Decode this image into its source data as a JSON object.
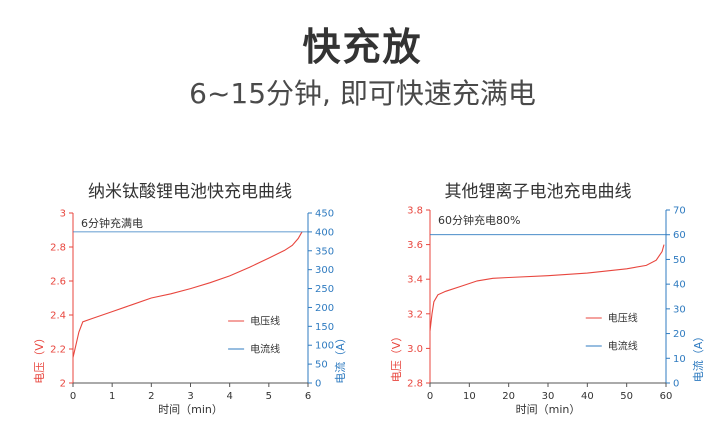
{
  "header": {
    "title": "快充放",
    "subtitle": "6~15分钟, 即可快速充满电"
  },
  "colors": {
    "voltage": "#e8463e",
    "current": "#2f7bc0",
    "text": "#333333"
  },
  "chart_data": [
    {
      "type": "line",
      "title": "纳米钛酸锂电池快充电曲线",
      "annotation": "6分钟充满电",
      "xlabel": "时间（min）",
      "ylabel": "电压（V）",
      "y2label": "电流（A）",
      "xlim": [
        0,
        6
      ],
      "ylim": [
        2,
        3
      ],
      "y2lim": [
        0,
        450
      ],
      "x_ticks": [
        "0",
        "1",
        "2",
        "3",
        "4",
        "5",
        "6"
      ],
      "y_ticks": [
        "2",
        "2.2",
        "2.4",
        "2.6",
        "2.8",
        "3"
      ],
      "y2_ticks": [
        "0",
        "50",
        "100",
        "150",
        "200",
        "250",
        "300",
        "350",
        "400",
        "450"
      ],
      "legend": [
        "电压线",
        "电流线"
      ],
      "series": [
        {
          "name": "电压线",
          "axis": "left",
          "x": [
            0.0,
            0.05,
            0.15,
            0.25,
            0.5,
            1.0,
            1.5,
            2.0,
            2.5,
            3.0,
            3.5,
            4.0,
            4.5,
            5.0,
            5.4,
            5.6,
            5.75,
            5.85
          ],
          "y": [
            2.15,
            2.2,
            2.3,
            2.36,
            2.38,
            2.42,
            2.46,
            2.5,
            2.525,
            2.555,
            2.59,
            2.63,
            2.68,
            2.735,
            2.78,
            2.81,
            2.85,
            2.89
          ]
        },
        {
          "name": "电流线",
          "axis": "right",
          "x": [
            0,
            6
          ],
          "y": [
            400,
            400
          ]
        }
      ]
    },
    {
      "type": "line",
      "title": "其他锂离子电池充电曲线",
      "annotation": "60分钟充电80%",
      "xlabel": "时间（min）",
      "ylabel": "电压（V）",
      "y2label": "电流（A）",
      "xlim": [
        0,
        60
      ],
      "ylim": [
        2.8,
        3.8
      ],
      "y2lim": [
        0,
        70
      ],
      "x_ticks": [
        "0",
        "10",
        "20",
        "30",
        "40",
        "50",
        "60"
      ],
      "y_ticks": [
        "2.8",
        "3.0",
        "3.2",
        "3.4",
        "3.6",
        "3.8"
      ],
      "y2_ticks": [
        "0",
        "10",
        "20",
        "30",
        "40",
        "50",
        "60",
        "70"
      ],
      "legend": [
        "电压线",
        "电流线"
      ],
      "series": [
        {
          "name": "电压线",
          "axis": "left",
          "x": [
            0.0,
            0.5,
            1.0,
            2.0,
            4.0,
            8.0,
            12.0,
            16.0,
            20.0,
            30.0,
            40.0,
            50.0,
            55.0,
            57.5,
            59.0,
            59.5
          ],
          "y": [
            3.1,
            3.2,
            3.27,
            3.31,
            3.33,
            3.36,
            3.39,
            3.405,
            3.41,
            3.42,
            3.435,
            3.46,
            3.48,
            3.51,
            3.56,
            3.6
          ]
        },
        {
          "name": "电流线",
          "axis": "right",
          "x": [
            0,
            60
          ],
          "y": [
            60,
            60
          ]
        }
      ]
    }
  ]
}
